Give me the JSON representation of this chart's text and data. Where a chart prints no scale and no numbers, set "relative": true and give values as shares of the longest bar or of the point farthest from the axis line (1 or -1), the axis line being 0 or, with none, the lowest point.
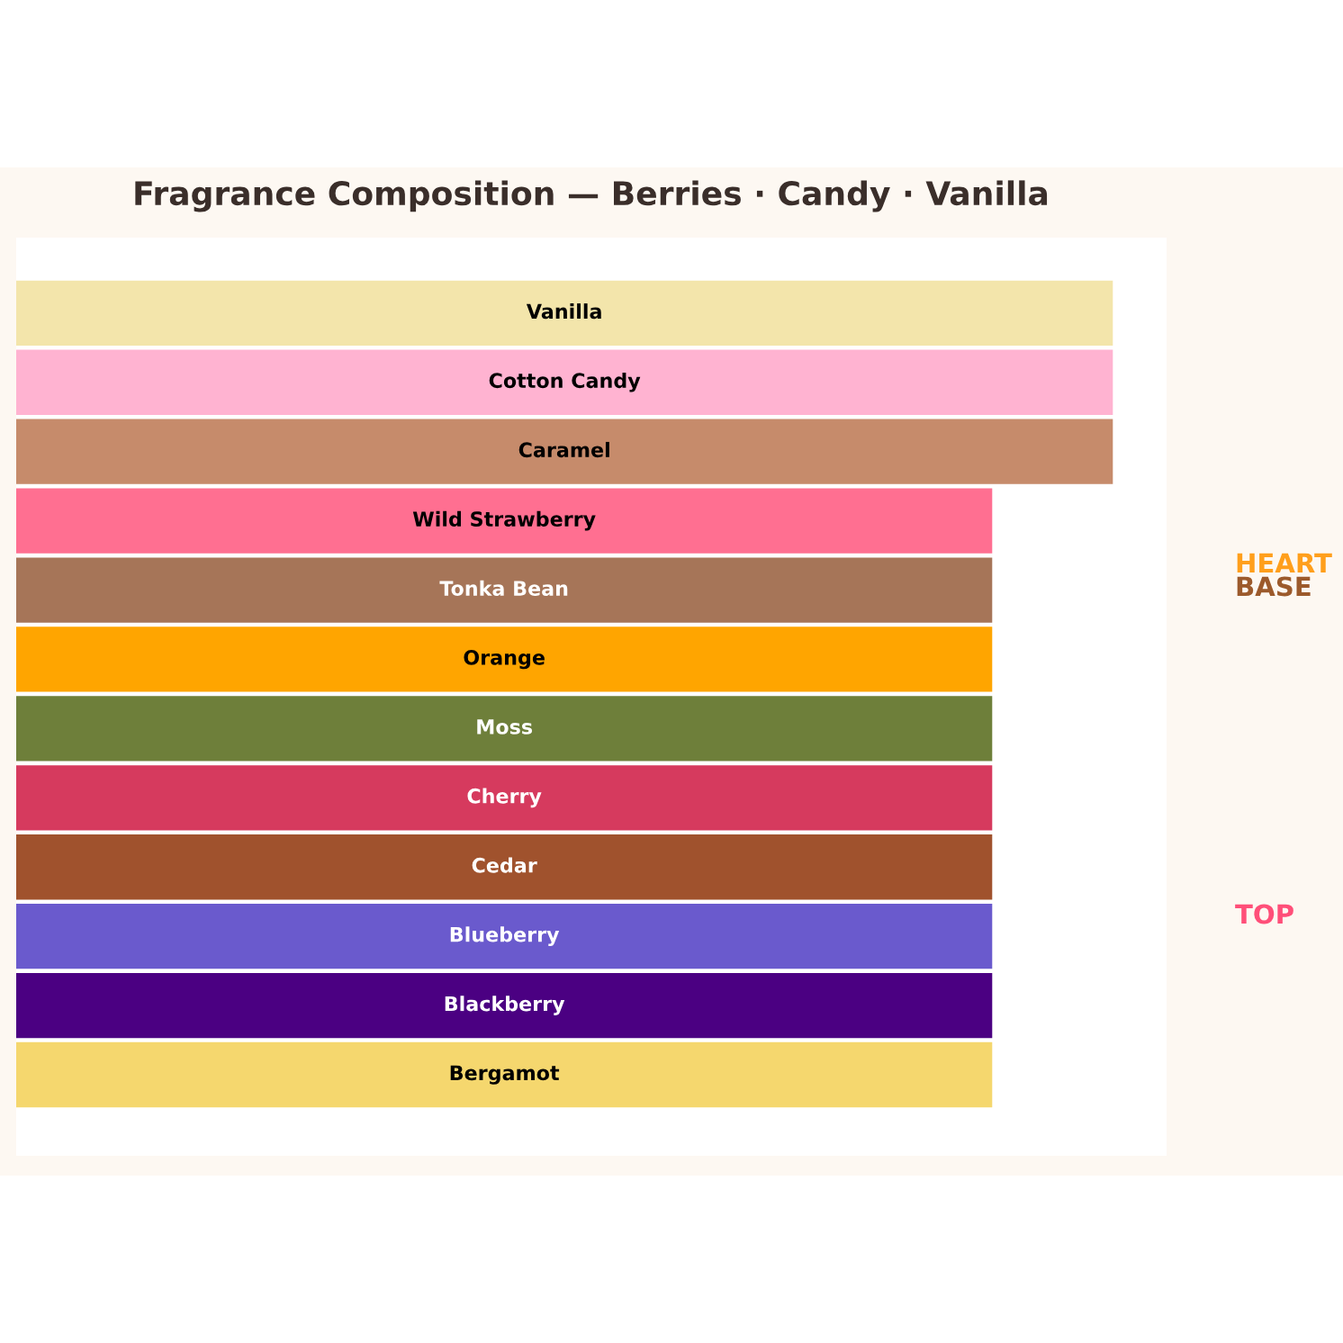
{
  "chart_data": {
    "type": "bar",
    "orientation": "horizontal",
    "relative": true,
    "title": "Fragrance Composition — Berries · Candy · Vanilla",
    "categories": [
      "Vanilla",
      "Cotton Candy",
      "Caramel",
      "Wild Strawberry",
      "Tonka Bean",
      "Orange",
      "Moss",
      "Cherry",
      "Cedar",
      "Blueberry",
      "Blackberry",
      "Bergamot"
    ],
    "values": [
      1,
      1,
      1,
      0.89,
      0.89,
      0.89,
      0.89,
      0.89,
      0.89,
      0.89,
      0.89,
      0.89
    ],
    "colors": [
      "#f3e5ab",
      "#ffb3d1",
      "#c68b6b",
      "#ff6f91",
      "#a67558",
      "#ffa500",
      "#6e7f3a",
      "#d63a5e",
      "#a0522d",
      "#6a5acd",
      "#4b0082",
      "#f5d76e"
    ],
    "annotations": [
      "HEART",
      "BASE",
      "TOP"
    ],
    "legend": false
  }
}
